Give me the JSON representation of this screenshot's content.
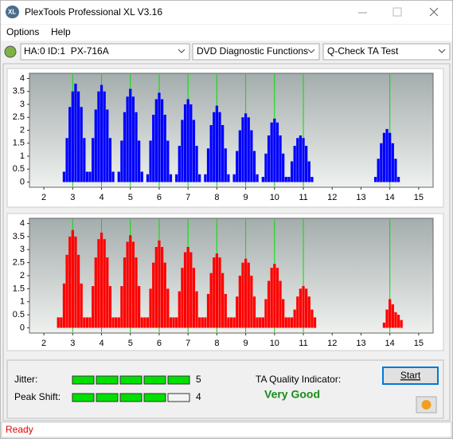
{
  "window": {
    "title": "PlexTools Professional XL V3.16"
  },
  "menu": [
    "Options",
    "Help"
  ],
  "toolbar": {
    "drive": "HA:0 ID:1  PX-716A",
    "function": "DVD Diagnostic Functions",
    "test": "Q-Check TA Test"
  },
  "chart_data": [
    {
      "type": "bar",
      "color": "#0000ff",
      "x": [
        2.7,
        2.8,
        2.9,
        3.0,
        3.1,
        3.2,
        3.3,
        3.4,
        3.5,
        3.6,
        3.7,
        3.8,
        3.9,
        4.0,
        4.1,
        4.2,
        4.3,
        4.4,
        4.6,
        4.7,
        4.8,
        4.9,
        5.0,
        5.1,
        5.2,
        5.3,
        5.4,
        5.6,
        5.7,
        5.8,
        5.9,
        6.0,
        6.1,
        6.2,
        6.3,
        6.4,
        6.6,
        6.7,
        6.8,
        6.9,
        7.0,
        7.1,
        7.2,
        7.3,
        7.4,
        7.6,
        7.7,
        7.8,
        7.9,
        8.0,
        8.1,
        8.2,
        8.3,
        8.4,
        8.6,
        8.7,
        8.8,
        8.9,
        9.0,
        9.1,
        9.2,
        9.3,
        9.4,
        9.6,
        9.7,
        9.8,
        9.9,
        10.0,
        10.1,
        10.2,
        10.3,
        10.4,
        10.5,
        10.6,
        10.7,
        10.8,
        10.9,
        11.0,
        11.1,
        11.2,
        11.3,
        13.5,
        13.6,
        13.7,
        13.8,
        13.9,
        14.0,
        14.1,
        14.2,
        14.3
      ],
      "values": [
        0.4,
        1.7,
        2.9,
        3.5,
        3.8,
        3.5,
        2.9,
        1.7,
        0.4,
        0.4,
        1.7,
        2.8,
        3.5,
        3.75,
        3.5,
        2.8,
        1.7,
        0.4,
        0.4,
        1.6,
        2.7,
        3.3,
        3.6,
        3.3,
        2.7,
        1.6,
        0.4,
        0.3,
        1.6,
        2.6,
        3.2,
        3.45,
        3.2,
        2.6,
        1.6,
        0.3,
        0.3,
        1.4,
        2.4,
        3.0,
        3.2,
        3.0,
        2.4,
        1.4,
        0.3,
        0.3,
        1.3,
        2.2,
        2.7,
        2.95,
        2.7,
        2.2,
        1.3,
        0.3,
        0.3,
        1.2,
        2.0,
        2.5,
        2.65,
        2.5,
        2.0,
        1.2,
        0.3,
        0.2,
        1.1,
        1.8,
        2.3,
        2.45,
        2.3,
        1.8,
        1.1,
        0.2,
        0.2,
        0.8,
        1.4,
        1.7,
        1.8,
        1.7,
        1.4,
        0.8,
        0.2,
        0.2,
        0.9,
        1.5,
        1.9,
        2.05,
        1.9,
        1.5,
        0.9,
        0.2
      ],
      "xlim": [
        1.5,
        15.5
      ],
      "xticks": [
        2,
        3,
        4,
        5,
        6,
        7,
        8,
        9,
        10,
        11,
        12,
        13,
        14,
        15
      ],
      "ylim": [
        -0.2,
        4.2
      ],
      "yticks": [
        0,
        0.5,
        1,
        1.5,
        2,
        2.5,
        3,
        3.5,
        4
      ],
      "markers": [
        3,
        4,
        5,
        6,
        7,
        8,
        9,
        10,
        11,
        14
      ],
      "marker_color": "#00e000"
    },
    {
      "type": "bar",
      "color": "#ff0000",
      "x": [
        2.5,
        2.6,
        2.7,
        2.8,
        2.9,
        3.0,
        3.1,
        3.2,
        3.3,
        3.4,
        3.5,
        3.6,
        3.7,
        3.8,
        3.9,
        4.0,
        4.1,
        4.2,
        4.3,
        4.4,
        4.5,
        4.6,
        4.7,
        4.8,
        4.9,
        5.0,
        5.1,
        5.2,
        5.3,
        5.4,
        5.5,
        5.6,
        5.7,
        5.8,
        5.9,
        6.0,
        6.1,
        6.2,
        6.3,
        6.4,
        6.5,
        6.6,
        6.7,
        6.8,
        6.9,
        7.0,
        7.1,
        7.2,
        7.3,
        7.4,
        7.5,
        7.6,
        7.7,
        7.8,
        7.9,
        8.0,
        8.1,
        8.2,
        8.3,
        8.4,
        8.5,
        8.6,
        8.7,
        8.8,
        8.9,
        9.0,
        9.1,
        9.2,
        9.3,
        9.4,
        9.5,
        9.6,
        9.7,
        9.8,
        9.9,
        10.0,
        10.1,
        10.2,
        10.3,
        10.4,
        10.5,
        10.6,
        10.7,
        10.8,
        10.9,
        11.0,
        11.1,
        11.2,
        11.3,
        11.4,
        13.8,
        13.9,
        14.0,
        14.1,
        14.2,
        14.3,
        14.4
      ],
      "values": [
        0.4,
        0.4,
        1.7,
        2.8,
        3.5,
        3.75,
        3.5,
        2.8,
        1.7,
        0.4,
        0.4,
        0.4,
        1.6,
        2.7,
        3.4,
        3.65,
        3.4,
        2.7,
        1.6,
        0.4,
        0.4,
        0.4,
        1.6,
        2.7,
        3.3,
        3.55,
        3.3,
        2.7,
        1.6,
        0.4,
        0.4,
        0.4,
        1.5,
        2.5,
        3.1,
        3.35,
        3.1,
        2.5,
        1.5,
        0.4,
        0.4,
        0.4,
        1.4,
        2.3,
        2.9,
        3.1,
        2.9,
        2.3,
        1.4,
        0.4,
        0.4,
        0.4,
        1.3,
        2.1,
        2.7,
        2.85,
        2.7,
        2.1,
        1.3,
        0.4,
        0.4,
        0.4,
        1.2,
        2.0,
        2.5,
        2.65,
        2.5,
        2.0,
        1.2,
        0.4,
        0.4,
        0.4,
        1.1,
        1.8,
        2.3,
        2.45,
        2.3,
        1.8,
        1.1,
        0.4,
        0.4,
        0.4,
        0.7,
        1.2,
        1.5,
        1.6,
        1.5,
        1.2,
        0.7,
        0.4,
        0.2,
        0.7,
        1.1,
        0.9,
        0.6,
        0.5,
        0.3
      ],
      "xlim": [
        1.5,
        15.5
      ],
      "xticks": [
        2,
        3,
        4,
        5,
        6,
        7,
        8,
        9,
        10,
        11,
        12,
        13,
        14,
        15
      ],
      "ylim": [
        -0.2,
        4.2
      ],
      "yticks": [
        0,
        0.5,
        1,
        1.5,
        2,
        2.5,
        3,
        3.5,
        4
      ],
      "markers": [
        3,
        4,
        5,
        6,
        7,
        8,
        9,
        10,
        11,
        14
      ],
      "marker_color": "#00e000"
    }
  ],
  "quality": {
    "jitter": {
      "label": "Jitter:",
      "value": 5
    },
    "peak_shift": {
      "label": "Peak Shift:",
      "value": 4
    },
    "indicator_label": "TA Quality Indicator:",
    "rating": "Very Good",
    "button": "Start"
  },
  "status": "Ready"
}
